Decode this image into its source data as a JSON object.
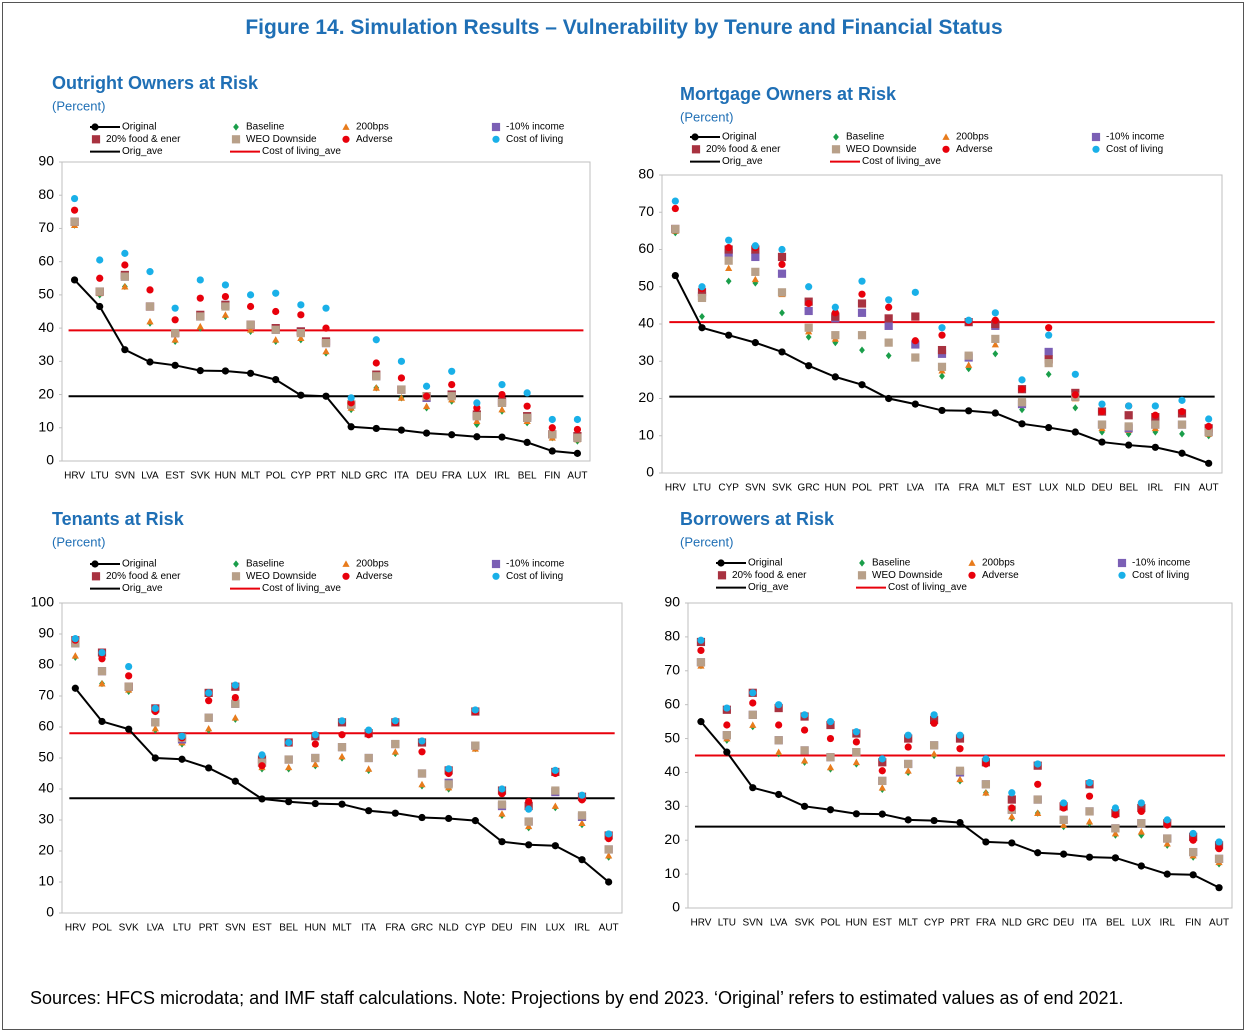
{
  "title": "Figure 14. Simulation Results – Vulnerability by Tenure and Financial Status",
  "footnote": "Sources: HFCS microdata; and IMF staff calculations. Note: Projections by end 2023. ‘Original’ refers to estimated values as of end 2021.",
  "chart_data": [
    {
      "type": "line",
      "title": "Outright Owners at Risk",
      "subtitle": "(Percent)",
      "categories": [
        "HRV",
        "LTU",
        "SVN",
        "LVA",
        "EST",
        "SVK",
        "HUN",
        "MLT",
        "POL",
        "CYP",
        "PRT",
        "NLD",
        "GRC",
        "ITA",
        "DEU",
        "FRA",
        "LUX",
        "IRL",
        "BEL",
        "FIN",
        "AUT"
      ],
      "ylim": [
        0,
        90
      ],
      "yticks": [
        0,
        10,
        20,
        30,
        40,
        50,
        60,
        70,
        80,
        90
      ],
      "series": [
        {
          "name": "Original",
          "color": "#000000",
          "marker": "circle",
          "line": true,
          "values": [
            54.5,
            46.5,
            33.5,
            29.8,
            28.8,
            27.2,
            27.1,
            26.4,
            24.5,
            19.8,
            19.5,
            10.3,
            9.8,
            9.3,
            8.4,
            7.9,
            7.3,
            7.2,
            5.6,
            3.0,
            2.3
          ]
        },
        {
          "name": "Baseline",
          "color": "#1a9e4a",
          "marker": "diamond",
          "values": [
            71,
            50,
            52.5,
            41.5,
            36,
            40,
            43.5,
            39,
            36,
            36.5,
            32.5,
            15.5,
            22,
            19,
            16,
            18,
            11,
            15,
            11.5,
            7,
            6
          ]
        },
        {
          "name": "200bps",
          "color": "#e87b1c",
          "marker": "triangle",
          "values": [
            71,
            50.5,
            52.5,
            42,
            36.5,
            40.5,
            44,
            39.5,
            36.5,
            37,
            33,
            16,
            22,
            19,
            16.5,
            18.5,
            12,
            15.5,
            12,
            7,
            6.5
          ]
        },
        {
          "name": "-10% income",
          "color": "#7b5fb5",
          "marker": "square",
          "values": [
            72,
            51,
            55.5,
            46.5,
            38.5,
            43.5,
            47,
            41,
            39.5,
            39,
            35.5,
            17,
            25.5,
            21.5,
            19,
            20,
            13.5,
            17.5,
            13,
            8,
            7
          ]
        },
        {
          "name": "20% food & ener",
          "color": "#a83240",
          "marker": "square",
          "values": [
            72,
            51,
            56,
            46.5,
            38.5,
            44,
            47,
            41,
            40,
            39,
            36,
            17,
            26,
            21.5,
            19.5,
            20,
            14,
            18,
            13.5,
            8,
            7.5
          ]
        },
        {
          "name": "WEO Downside",
          "color": "#b8a089",
          "marker": "square",
          "values": [
            72,
            51,
            55.5,
            46.5,
            38.5,
            43.5,
            46.5,
            41,
            39.5,
            38.5,
            35.5,
            17,
            25.5,
            21.5,
            19.5,
            19.5,
            13.5,
            17.5,
            13,
            8,
            7
          ]
        },
        {
          "name": "Adverse",
          "color": "#e8000b",
          "marker": "circle",
          "values": [
            75.5,
            55,
            59,
            51.5,
            42.5,
            49,
            49.5,
            46.5,
            45,
            44,
            40,
            17.5,
            29.5,
            25,
            19.5,
            23,
            16,
            20,
            16.5,
            10,
            9.5
          ]
        },
        {
          "name": "Cost of living",
          "color": "#19b0e8",
          "marker": "circle",
          "values": [
            79,
            60.5,
            62.5,
            57,
            46,
            54.5,
            53,
            50,
            50.5,
            47,
            46,
            19,
            36.5,
            30,
            22.5,
            27,
            17.5,
            23,
            20.5,
            12.5,
            12.5
          ]
        },
        {
          "name": "Orig_ave",
          "color": "#000000",
          "value": 19.5
        },
        {
          "name": "Cost of living_ave",
          "color": "#e8000b",
          "value": 39.3
        }
      ]
    },
    {
      "type": "line",
      "title": "Mortgage Owners at Risk",
      "subtitle": "(Percent)",
      "categories": [
        "HRV",
        "LTU",
        "CYP",
        "SVN",
        "SVK",
        "GRC",
        "HUN",
        "POL",
        "PRT",
        "LVA",
        "ITA",
        "FRA",
        "MLT",
        "EST",
        "LUX",
        "NLD",
        "DEU",
        "BEL",
        "IRL",
        "FIN",
        "AUT"
      ],
      "ylim": [
        0,
        80
      ],
      "yticks": [
        0,
        10,
        20,
        30,
        40,
        50,
        60,
        70,
        80
      ],
      "series": [
        {
          "name": "Original",
          "color": "#000000",
          "marker": "circle",
          "line": true,
          "values": [
            53,
            39,
            37,
            35,
            32.5,
            28.8,
            25.8,
            23.7,
            20,
            18.5,
            16.8,
            16.7,
            16.1,
            13.2,
            12.2,
            11,
            8.3,
            7.5,
            6.9,
            5.3,
            2.6
          ]
        },
        {
          "name": "Baseline",
          "color": "#1a9e4a",
          "marker": "diamond",
          "values": [
            64.5,
            42,
            51.5,
            51,
            43,
            36.5,
            35,
            33,
            31.5,
            31,
            26,
            28,
            32,
            17,
            26.5,
            17.5,
            11,
            10.5,
            11,
            10.5,
            10
          ]
        },
        {
          "name": "200bps",
          "color": "#e87b1c",
          "marker": "triangle",
          "values": [
            65,
            47,
            55,
            52,
            48,
            38,
            36,
            37,
            35,
            31,
            27.5,
            29,
            34.5,
            18.5,
            29.5,
            20,
            12,
            11.5,
            12,
            13,
            10.5
          ]
        },
        {
          "name": "-10% income",
          "color": "#7b5fb5",
          "marker": "square",
          "values": [
            65.5,
            47.5,
            59,
            58,
            53.5,
            43.5,
            41.5,
            43,
            39.5,
            34.5,
            32,
            31,
            39.5,
            18.5,
            32.5,
            20.5,
            13,
            12,
            13,
            13,
            11
          ]
        },
        {
          "name": "20% food & ener",
          "color": "#a83240",
          "marker": "square",
          "values": [
            65.5,
            48.5,
            60,
            60,
            58,
            46,
            42,
            45.5,
            41.5,
            42,
            33,
            40.5,
            40,
            22.5,
            30.5,
            21.5,
            16.5,
            15.5,
            15,
            16,
            12
          ]
        },
        {
          "name": "WEO Downside",
          "color": "#b8a089",
          "marker": "square",
          "values": [
            65.5,
            47,
            57,
            54,
            48.5,
            39,
            37,
            37,
            35,
            31,
            28.5,
            31.5,
            36,
            19,
            29.5,
            20.5,
            13,
            12.5,
            13,
            13,
            11
          ]
        },
        {
          "name": "Adverse",
          "color": "#e8000b",
          "marker": "circle",
          "values": [
            71,
            49.5,
            60.5,
            60.5,
            56,
            45.5,
            43,
            48,
            44.5,
            35.5,
            37,
            40.5,
            41,
            22.5,
            39,
            21,
            16.5,
            18,
            15.5,
            16.5,
            12.5
          ]
        },
        {
          "name": "Cost of living",
          "color": "#19b0e8",
          "marker": "circle",
          "values": [
            73,
            50,
            62.5,
            61,
            60,
            50,
            44.5,
            51.5,
            46.5,
            48.5,
            39,
            41,
            43,
            25,
            37,
            26.5,
            18.5,
            18,
            18,
            19.5,
            14.5
          ]
        },
        {
          "name": "Orig_ave",
          "color": "#000000",
          "value": 20.5
        },
        {
          "name": "Cost of living_ave",
          "color": "#e8000b",
          "value": 40.5
        }
      ]
    },
    {
      "type": "line",
      "title": "Tenants at Risk",
      "subtitle": "(Percent)",
      "categories": [
        "HRV",
        "POL",
        "SVK",
        "LVA",
        "LTU",
        "PRT",
        "SVN",
        "EST",
        "BEL",
        "HUN",
        "MLT",
        "ITA",
        "FRA",
        "GRC",
        "NLD",
        "CYP",
        "DEU",
        "FIN",
        "LUX",
        "IRL",
        "AUT"
      ],
      "ylim": [
        0,
        100
      ],
      "yticks": [
        0,
        10,
        20,
        30,
        40,
        50,
        60,
        70,
        80,
        90,
        100
      ],
      "series": [
        {
          "name": "Original",
          "color": "#000000",
          "marker": "circle",
          "line": true,
          "values": [
            72.5,
            61.8,
            59.3,
            50,
            49.6,
            46.8,
            42.5,
            36.8,
            35.9,
            35.3,
            35.1,
            33,
            32.2,
            30.8,
            30.5,
            29.8,
            23,
            22,
            21.7,
            17.2,
            10
          ]
        },
        {
          "name": "Baseline",
          "color": "#1a9e4a",
          "marker": "diamond",
          "values": [
            82.5,
            74,
            71.5,
            59,
            54.5,
            59,
            62.5,
            46.5,
            46.5,
            47.5,
            50,
            46,
            51.5,
            41,
            40,
            53,
            31.5,
            27.5,
            34,
            28.5,
            18
          ]
        },
        {
          "name": "200bps",
          "color": "#e87b1c",
          "marker": "triangle",
          "values": [
            83,
            74,
            72,
            59.5,
            55,
            59.5,
            63,
            47,
            47,
            48,
            50.5,
            46.5,
            52,
            41.5,
            40.5,
            53,
            32,
            28,
            34.5,
            29,
            18.5
          ]
        },
        {
          "name": "-10% income",
          "color": "#7b5fb5",
          "marker": "square",
          "values": [
            87,
            78,
            73,
            61.5,
            56,
            63,
            67.5,
            48.5,
            49.5,
            50,
            53.5,
            50,
            54.5,
            45,
            42,
            54,
            34.5,
            29.5,
            39,
            31,
            20.5
          ]
        },
        {
          "name": "20% food & ener",
          "color": "#a83240",
          "marker": "square",
          "values": [
            88,
            84,
            73,
            66,
            57,
            71,
            73,
            49.5,
            55,
            57,
            61.5,
            58,
            61.5,
            55,
            46,
            65,
            39.5,
            34.5,
            45.5,
            37.5,
            25
          ]
        },
        {
          "name": "WEO Downside",
          "color": "#b8a089",
          "marker": "square",
          "values": [
            87,
            78,
            73,
            61.5,
            56.5,
            63,
            67.5,
            48.5,
            49.5,
            50,
            53.5,
            50,
            54.5,
            45,
            41.5,
            54,
            35,
            29.5,
            39.5,
            31.5,
            20.5
          ]
        },
        {
          "name": "Adverse",
          "color": "#e8000b",
          "marker": "circle",
          "values": [
            88,
            82,
            76.5,
            65,
            56.5,
            68.5,
            69.5,
            47.5,
            55,
            54.5,
            57.5,
            57.5,
            61.5,
            52,
            45,
            65,
            38.5,
            36,
            45,
            36.5,
            24
          ]
        },
        {
          "name": "Cost of living",
          "color": "#19b0e8",
          "marker": "circle",
          "values": [
            88.5,
            84,
            79.5,
            66,
            57,
            71,
            73.5,
            51,
            55,
            57.5,
            62,
            59,
            62,
            55.5,
            46.5,
            65.5,
            40,
            33.5,
            46,
            38,
            25.5
          ]
        },
        {
          "name": "Orig_ave",
          "color": "#000000",
          "value": 37
        },
        {
          "name": "Cost of living_ave",
          "color": "#e8000b",
          "value": 58
        }
      ]
    },
    {
      "type": "line",
      "title": "Borrowers at Risk",
      "subtitle": "(Percent)",
      "categories": [
        "HRV",
        "LTU",
        "SVN",
        "LVA",
        "SVK",
        "POL",
        "HUN",
        "EST",
        "MLT",
        "CYP",
        "PRT",
        "FRA",
        "NLD",
        "GRC",
        "DEU",
        "ITA",
        "BEL",
        "LUX",
        "IRL",
        "FIN",
        "AUT"
      ],
      "ylim": [
        0,
        90
      ],
      "yticks": [
        0,
        10,
        20,
        30,
        40,
        50,
        60,
        70,
        80,
        90
      ],
      "series": [
        {
          "name": "Original",
          "color": "#000000",
          "marker": "circle",
          "line": true,
          "values": [
            55,
            46,
            35.5,
            33.5,
            30,
            29,
            27.8,
            27.7,
            26,
            25.8,
            25.2,
            19.5,
            19.2,
            16.3,
            15.9,
            15,
            14.8,
            12.4,
            10,
            9.8,
            6
          ]
        },
        {
          "name": "Baseline",
          "color": "#1a9e4a",
          "marker": "diamond",
          "values": [
            71.5,
            49.5,
            53.5,
            45.5,
            43,
            41,
            42.5,
            35,
            40,
            45,
            37.5,
            34,
            26.5,
            28,
            24,
            25,
            21.5,
            21.5,
            18.5,
            15,
            13
          ]
        },
        {
          "name": "200bps",
          "color": "#e87b1c",
          "marker": "triangle",
          "values": [
            71.5,
            50,
            54,
            46,
            43.5,
            41.5,
            43,
            35.5,
            40.5,
            45.5,
            38,
            34,
            27,
            28,
            24.5,
            25.5,
            22,
            22.5,
            19,
            15.5,
            13.5
          ]
        },
        {
          "name": "-10% income",
          "color": "#7b5fb5",
          "marker": "square",
          "values": [
            72.5,
            51,
            57,
            49.5,
            46.5,
            44.5,
            46,
            37.5,
            42.5,
            48,
            40,
            36.5,
            29,
            32,
            26,
            28.5,
            23.5,
            25,
            20.5,
            16.5,
            14.5
          ]
        },
        {
          "name": "20% food & ener",
          "color": "#a83240",
          "marker": "square",
          "values": [
            78.5,
            58.5,
            63.5,
            59,
            56.5,
            54,
            51.5,
            43,
            50,
            55.5,
            50,
            43,
            32,
            42,
            30,
            36.5,
            28,
            29.5,
            25,
            21,
            18.5
          ]
        },
        {
          "name": "WEO Downside",
          "color": "#b8a089",
          "marker": "square",
          "values": [
            72.5,
            51,
            57,
            49.5,
            46.5,
            44.5,
            46,
            37.5,
            42.5,
            48,
            40.5,
            36.5,
            29,
            32,
            26,
            28.5,
            23.5,
            25,
            20.5,
            16.5,
            14.5
          ]
        },
        {
          "name": "Adverse",
          "color": "#e8000b",
          "marker": "circle",
          "values": [
            76,
            54,
            60.5,
            54,
            52.5,
            50,
            49,
            40.5,
            47.5,
            54.5,
            47,
            42.5,
            29.5,
            36.5,
            29.5,
            33,
            27.5,
            28.5,
            24.5,
            20,
            17.5
          ]
        },
        {
          "name": "Cost of living",
          "color": "#19b0e8",
          "marker": "circle",
          "values": [
            79,
            59,
            63.5,
            60,
            57,
            55,
            52,
            44,
            51,
            57,
            51,
            44,
            34,
            42.5,
            31,
            37,
            29.5,
            31,
            26,
            22,
            19.5
          ]
        },
        {
          "name": "Orig_ave",
          "color": "#000000",
          "value": 24
        },
        {
          "name": "Cost of living_ave",
          "color": "#e8000b",
          "value": 45
        }
      ]
    }
  ]
}
